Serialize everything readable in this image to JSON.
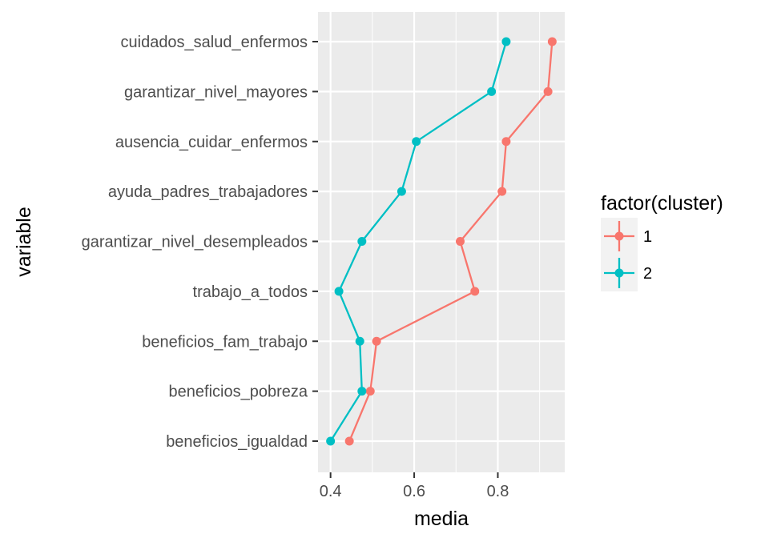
{
  "chart_data": {
    "type": "line",
    "xlabel": "media",
    "ylabel": "variable",
    "xlim": [
      0.37,
      0.96
    ],
    "x_ticks": [
      0.4,
      0.6,
      0.8
    ],
    "x_tick_labels": [
      "0.4",
      "0.6",
      "0.8"
    ],
    "categories": [
      "cuidados_salud_enfermos",
      "garantizar_nivel_mayores",
      "ausencia_cuidar_enfermos",
      "ayuda_padres_trabajadores",
      "garantizar_nivel_desempleados",
      "trabajo_a_todos",
      "beneficios_fam_trabajo",
      "beneficios_pobreza",
      "beneficios_igualdad"
    ],
    "series": [
      {
        "name": "1",
        "color": "#F8766D",
        "values": [
          0.93,
          0.92,
          0.82,
          0.81,
          0.71,
          0.745,
          0.51,
          0.495,
          0.445
        ]
      },
      {
        "name": "2",
        "color": "#00BFC4",
        "values": [
          0.82,
          0.785,
          0.605,
          0.57,
          0.475,
          0.42,
          0.47,
          0.475,
          0.4
        ]
      }
    ],
    "legend": {
      "title": "factor(cluster)",
      "position": "right"
    },
    "grid": true,
    "background": "#EBEBEB"
  }
}
